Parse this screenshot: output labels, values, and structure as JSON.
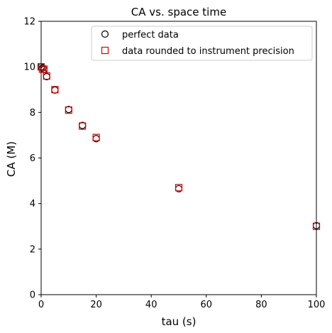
{
  "chart_data": {
    "type": "scatter",
    "title": "CA vs. space time",
    "xlabel": "tau (s)",
    "ylabel": "CA (M)",
    "xlim": [
      0,
      100
    ],
    "ylim": [
      0,
      12
    ],
    "xticks": [
      "0",
      "20",
      "40",
      "60",
      "80",
      "100"
    ],
    "yticks": [
      "0",
      "2",
      "4",
      "6",
      "8",
      "10",
      "12"
    ],
    "grid": false,
    "legend_position": "top-right",
    "series": [
      {
        "name": "perfect data",
        "marker": "circle-open",
        "color": "#000000",
        "points": [
          {
            "x": 0,
            "y": 10.0
          },
          {
            "x": 0.5,
            "y": 9.95
          },
          {
            "x": 1,
            "y": 9.88
          },
          {
            "x": 2,
            "y": 9.57
          },
          {
            "x": 5,
            "y": 8.98
          },
          {
            "x": 10,
            "y": 8.13
          },
          {
            "x": 15,
            "y": 7.43
          },
          {
            "x": 20,
            "y": 6.85
          },
          {
            "x": 50,
            "y": 4.65
          },
          {
            "x": 100,
            "y": 3.03
          }
        ]
      },
      {
        "name": "data rounded to instrument precision",
        "marker": "square-open",
        "color": "#dd0000",
        "points": [
          {
            "x": 0,
            "y": 10.0
          },
          {
            "x": 0.5,
            "y": 9.9
          },
          {
            "x": 1,
            "y": 9.9
          },
          {
            "x": 2,
            "y": 9.6
          },
          {
            "x": 5,
            "y": 9.0
          },
          {
            "x": 10,
            "y": 8.1
          },
          {
            "x": 15,
            "y": 7.4
          },
          {
            "x": 20,
            "y": 6.9
          },
          {
            "x": 50,
            "y": 4.7
          },
          {
            "x": 100,
            "y": 3.0
          }
        ]
      }
    ]
  }
}
